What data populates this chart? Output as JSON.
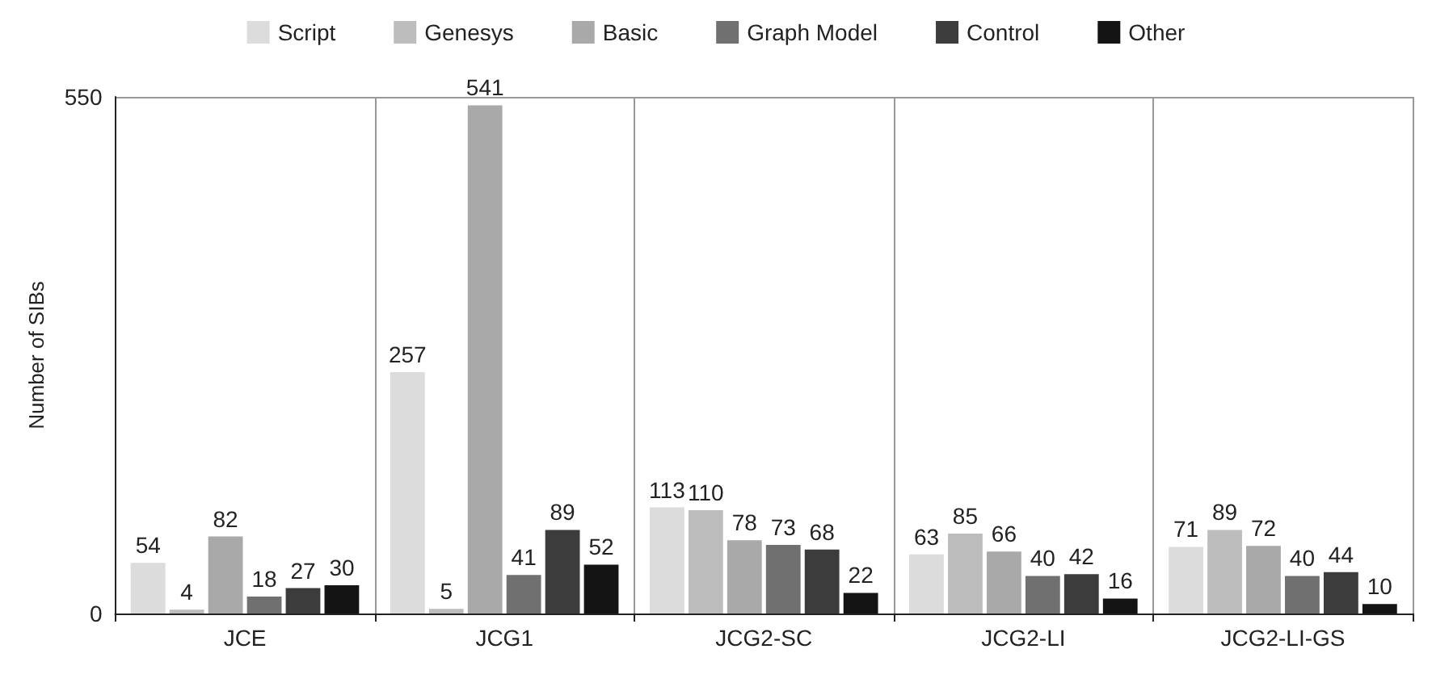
{
  "chart_data": {
    "type": "bar",
    "ylabel": "Number of SIBs",
    "categories": [
      "JCE",
      "JCG1",
      "JCG2-SC",
      "JCG2-LI",
      "JCG2-LI-GS"
    ],
    "series": [
      {
        "name": "Script",
        "color": "#dcdcdc",
        "values": [
          54,
          257,
          113,
          63,
          71
        ]
      },
      {
        "name": "Genesys",
        "color": "#bdbdbd",
        "values": [
          4,
          5,
          110,
          85,
          89
        ]
      },
      {
        "name": "Basic",
        "color": "#a9a9a9",
        "values": [
          82,
          541,
          78,
          66,
          72
        ]
      },
      {
        "name": "Graph Model",
        "color": "#707070",
        "values": [
          18,
          41,
          73,
          40,
          40
        ]
      },
      {
        "name": "Control",
        "color": "#3c3c3c",
        "values": [
          27,
          89,
          68,
          42,
          44
        ]
      },
      {
        "name": "Other",
        "color": "#141414",
        "values": [
          30,
          52,
          22,
          16,
          10
        ]
      }
    ],
    "ylim": [
      0,
      550
    ],
    "yticks": [
      0,
      550
    ],
    "grid": true,
    "legend": "top",
    "data_labels": true
  }
}
